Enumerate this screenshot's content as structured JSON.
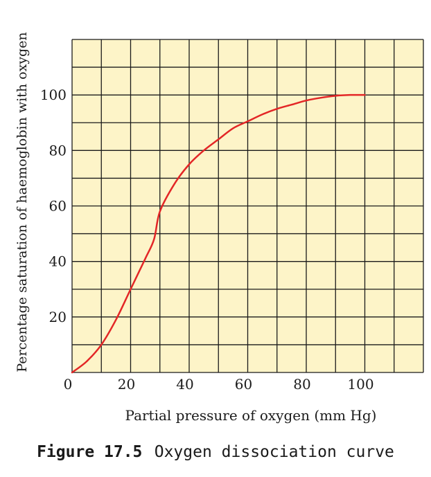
{
  "chart_data": {
    "type": "line",
    "title": "",
    "xlabel": "Partial pressure of oxygen (mm Hg)",
    "ylabel": "Percentage saturation of haemoglobin with oxygen",
    "xlim": [
      0,
      120
    ],
    "ylim": [
      0,
      120
    ],
    "x_ticks": [
      0,
      20,
      40,
      60,
      80,
      100
    ],
    "y_ticks": [
      20,
      40,
      60,
      80,
      100
    ],
    "grid": true,
    "grid_step": 10,
    "background_color": "#fdf4c8",
    "grid_color": "#1a1a1a",
    "line_color": "#e32626",
    "series": [
      {
        "x": [
          0,
          5,
          10,
          15,
          20,
          25,
          28,
          30,
          35,
          40,
          45,
          50,
          55,
          60,
          65,
          70,
          75,
          80,
          85,
          90,
          95,
          100
        ],
        "values": [
          0,
          4,
          10,
          19,
          30,
          41,
          48,
          58,
          68,
          75,
          80,
          84,
          88,
          90.5,
          93,
          95,
          96.5,
          98,
          99,
          99.7,
          100,
          100
        ]
      }
    ]
  },
  "caption": {
    "figure_number": "Figure 17.5",
    "text": "Oxygen dissociation curve"
  }
}
